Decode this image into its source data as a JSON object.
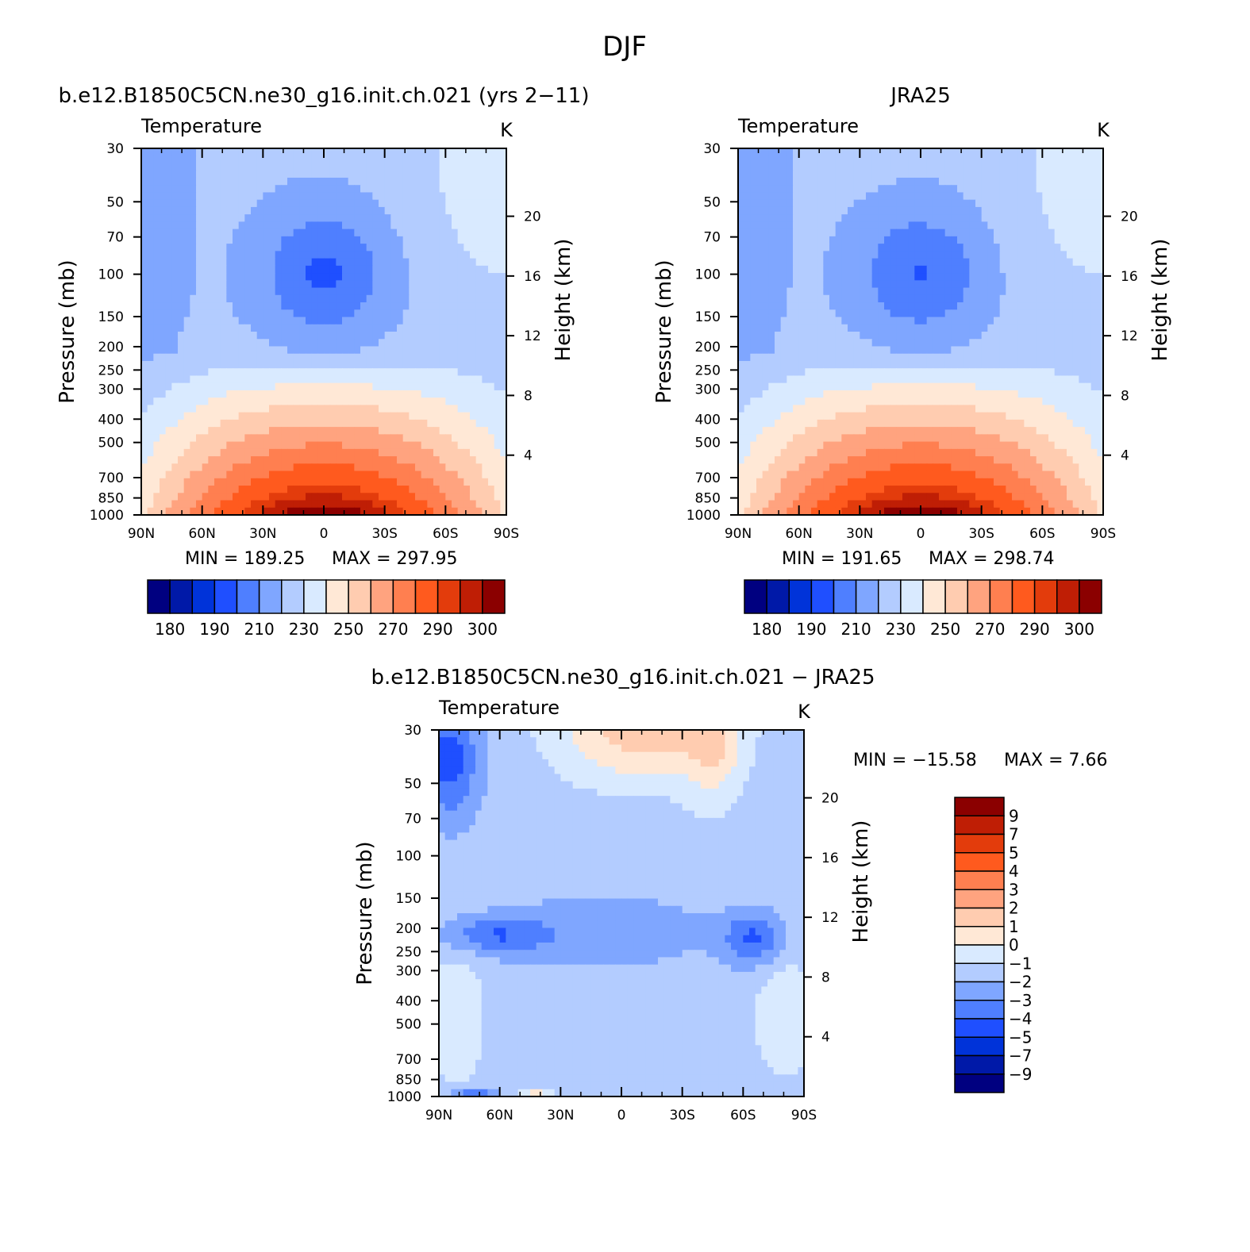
{
  "figure": {
    "title": "DJF",
    "panels_titles": {
      "model": "b.e12.B1850C5CN.ne30_g16.init.ch.021 (yrs 2−11)",
      "obs": "JRA25",
      "diff": "b.e12.B1850C5CN.ne30_g16.init.ch.021 − JRA25"
    }
  },
  "chart_data": [
    {
      "id": "model",
      "type": "heatmap",
      "title": "b.e12.B1850C5CN.ne30_g16.init.ch.021 (yrs 2−11)",
      "variable": "Temperature",
      "units": "K",
      "ylabel": "Pressure (mb)",
      "ylabel_right": "Height (km)",
      "xticks": [
        "90N",
        "60N",
        "30N",
        "0",
        "30S",
        "60S",
        "90S"
      ],
      "yticks": [
        "30",
        "50",
        "70",
        "100",
        "150",
        "200",
        "250",
        "300",
        "400",
        "500",
        "700",
        "850",
        "1000"
      ],
      "yticks_right": [
        "20",
        "16",
        "12",
        "8",
        "4"
      ],
      "min_label": "MIN = 189.25",
      "max_label": "MAX = 297.95",
      "min": 189.25,
      "max": 297.95,
      "colorbar_labels": [
        "180",
        "190",
        "210",
        "230",
        "250",
        "270",
        "290",
        "300"
      ]
    },
    {
      "id": "obs",
      "type": "heatmap",
      "title": "JRA25",
      "variable": "Temperature",
      "units": "K",
      "ylabel": "Pressure (mb)",
      "ylabel_right": "Height (km)",
      "xticks": [
        "90N",
        "60N",
        "30N",
        "0",
        "30S",
        "60S",
        "90S"
      ],
      "yticks": [
        "30",
        "50",
        "70",
        "100",
        "150",
        "200",
        "250",
        "300",
        "400",
        "500",
        "700",
        "850",
        "1000"
      ],
      "yticks_right": [
        "20",
        "16",
        "12",
        "8",
        "4"
      ],
      "min_label": "MIN = 191.65",
      "max_label": "MAX = 298.74",
      "min": 191.65,
      "max": 298.74,
      "colorbar_labels": [
        "180",
        "190",
        "210",
        "230",
        "250",
        "270",
        "290",
        "300"
      ]
    },
    {
      "id": "diff",
      "type": "heatmap",
      "title": "b.e12.B1850C5CN.ne30_g16.init.ch.021 − JRA25",
      "variable": "Temperature",
      "units": "K",
      "ylabel": "Pressure (mb)",
      "ylabel_right": "Height (km)",
      "xticks": [
        "90N",
        "60N",
        "30N",
        "0",
        "30S",
        "60S",
        "90S"
      ],
      "yticks": [
        "30",
        "50",
        "70",
        "100",
        "150",
        "200",
        "250",
        "300",
        "400",
        "500",
        "700",
        "850",
        "1000"
      ],
      "yticks_right": [
        "20",
        "16",
        "12",
        "8",
        "4"
      ],
      "min_label": "MIN = −15.58",
      "max_label": "MAX =  7.66",
      "min": -15.58,
      "max": 7.66,
      "colorbar_labels": [
        "9",
        "7",
        "5",
        "4",
        "3",
        "2",
        "1",
        "0",
        "−1",
        "−2",
        "−3",
        "−4",
        "−5",
        "−7",
        "−9"
      ]
    }
  ],
  "colors": {
    "abs_palette": [
      "#000080",
      "#0019a8",
      "#0033d9",
      "#1f4fff",
      "#4f7fff",
      "#7fa6ff",
      "#b3ccff",
      "#d9eaff",
      "#ffe8d6",
      "#ffccb0",
      "#ffa37f",
      "#ff7f50",
      "#ff5a1e",
      "#e33c0c",
      "#bf1e05",
      "#8b0000"
    ],
    "diff_palette": [
      "#8b0000",
      "#bf1e05",
      "#e33c0c",
      "#ff5a1e",
      "#ff7f50",
      "#ffa37f",
      "#ffccb0",
      "#ffe8d6",
      "#d9eaff",
      "#b3ccff",
      "#7fa6ff",
      "#4f7fff",
      "#1f4fff",
      "#0033d9",
      "#0019a8",
      "#000080"
    ]
  }
}
